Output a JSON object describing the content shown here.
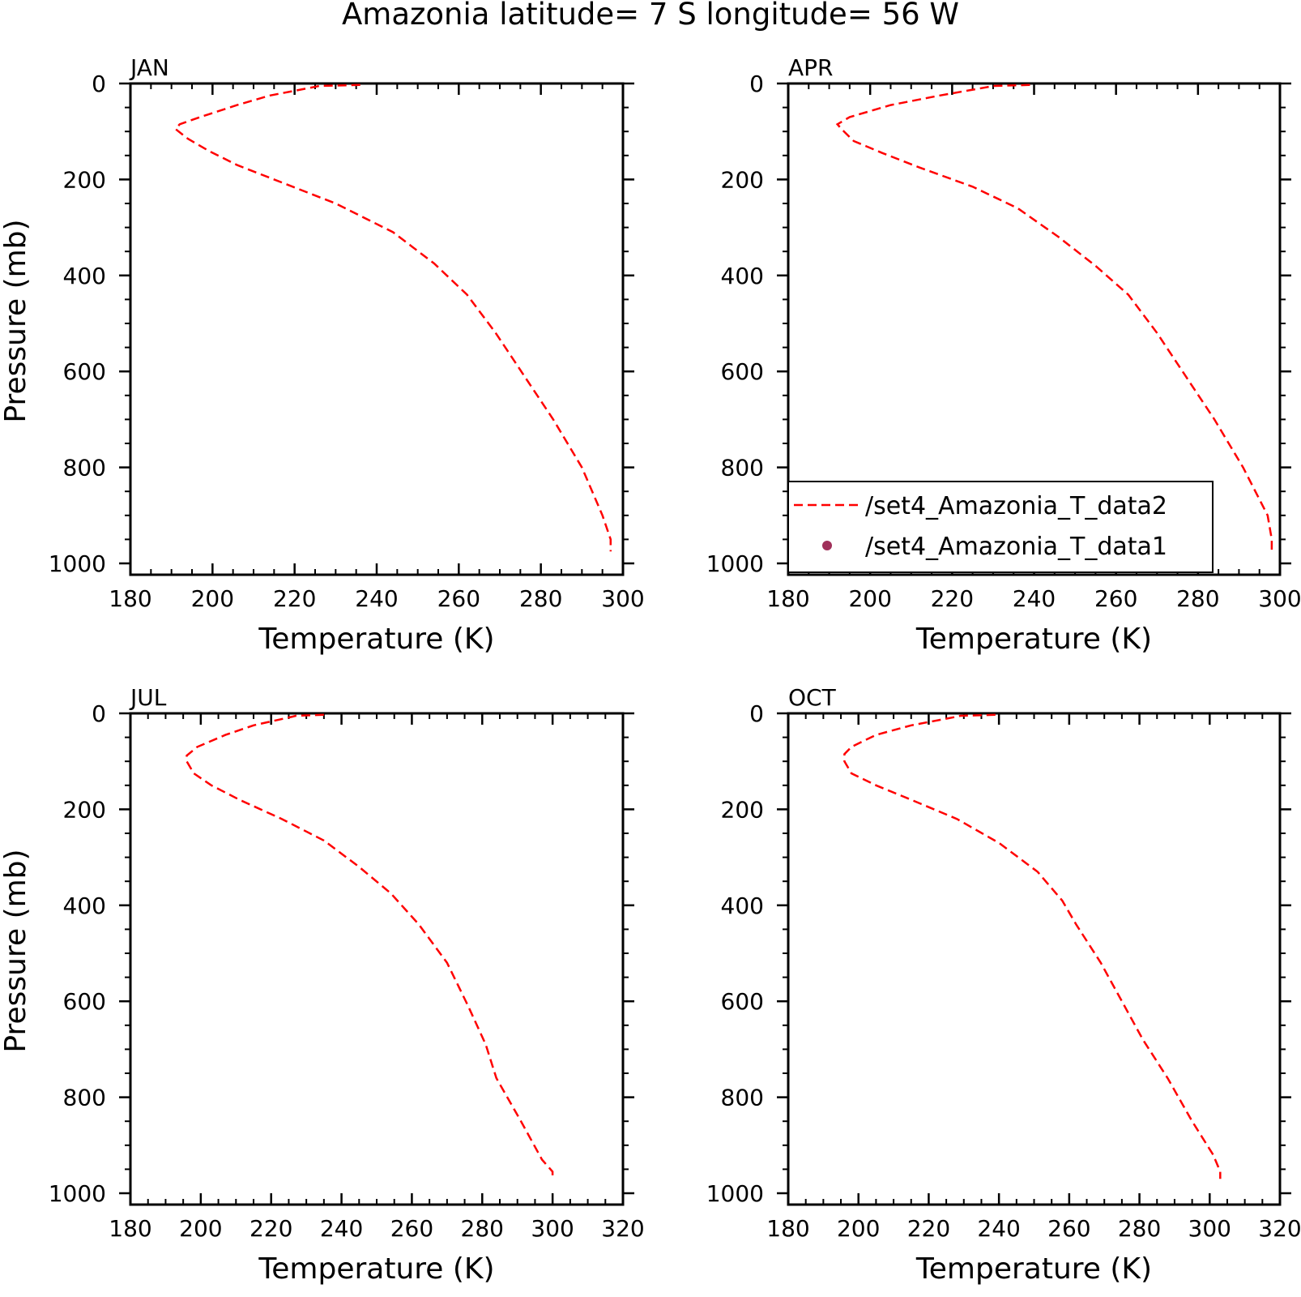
{
  "title": "Amazonia  latitude= 7 S longitude= 56 W",
  "legend": {
    "entries": [
      {
        "label": "/set4_Amazonia_T_data2",
        "style": "dashed-line",
        "color": "#ff0000"
      },
      {
        "label": "/set4_Amazonia_T_data1",
        "style": "marker",
        "color": "#a0305a"
      }
    ]
  },
  "chart_data": [
    {
      "type": "line",
      "panel": "JAN",
      "title": "JAN",
      "xlabel": "Temperature (K)",
      "ylabel": "Pressure (mb)",
      "xlim": [
        180,
        300
      ],
      "ylim": [
        1000,
        0
      ],
      "xticks": [
        "180",
        "200",
        "220",
        "240",
        "260",
        "280",
        "300"
      ],
      "yticks": [
        "0",
        "200",
        "400",
        "600",
        "800",
        "1000"
      ],
      "series": [
        {
          "name": "/set4_Amazonia_T_data2",
          "color": "#ff0000",
          "style": "dashed",
          "x": [
            236,
            226,
            225,
            214,
            206,
            197,
            192,
            191,
            194,
            199,
            206,
            218,
            230,
            244,
            254,
            262,
            269,
            276,
            283,
            290,
            295,
            297,
            297
          ],
          "y": [
            3,
            5,
            7,
            25,
            45,
            70,
            85,
            95,
            115,
            140,
            170,
            210,
            250,
            310,
            375,
            440,
            520,
            610,
            700,
            800,
            900,
            950,
            975
          ]
        },
        {
          "name": "/set4_Amazonia_T_data1",
          "color": "#a0305a",
          "style": "marker",
          "x": [],
          "y": []
        }
      ]
    },
    {
      "type": "line",
      "panel": "APR",
      "title": "APR",
      "xlabel": "Temperature (K)",
      "ylabel": "",
      "xlim": [
        180,
        300
      ],
      "ylim": [
        1000,
        0
      ],
      "xticks": [
        "180",
        "200",
        "220",
        "240",
        "260",
        "280",
        "300"
      ],
      "yticks": [
        "0",
        "200",
        "400",
        "600",
        "800",
        "1000"
      ],
      "series": [
        {
          "name": "/set4_Amazonia_T_data2",
          "color": "#ff0000",
          "style": "dashed",
          "x": [
            239,
            230,
            229,
            217,
            205,
            195,
            192,
            193,
            196,
            203,
            212,
            225,
            236,
            246,
            255,
            263,
            270,
            277,
            284,
            291,
            297,
            298,
            298
          ],
          "y": [
            3,
            5,
            7,
            25,
            45,
            70,
            85,
            95,
            120,
            145,
            175,
            215,
            260,
            320,
            380,
            440,
            520,
            610,
            700,
            800,
            900,
            950,
            975
          ]
        },
        {
          "name": "/set4_Amazonia_T_data1",
          "color": "#a0305a",
          "style": "marker",
          "x": [],
          "y": []
        }
      ]
    },
    {
      "type": "line",
      "panel": "JUL",
      "title": "JUL",
      "xlabel": "Temperature (K)",
      "ylabel": "Pressure (mb)",
      "xlim": [
        180,
        320
      ],
      "ylim": [
        1000,
        0
      ],
      "xticks": [
        "180",
        "200",
        "220",
        "240",
        "260",
        "280",
        "300",
        "320"
      ],
      "yticks": [
        "0",
        "200",
        "400",
        "600",
        "800",
        "1000"
      ],
      "series": [
        {
          "name": "/set4_Amazonia_T_data2",
          "color": "#ff0000",
          "style": "dashed",
          "x": [
            235,
            227,
            226,
            215,
            207,
            199,
            196,
            196,
            198,
            203,
            211,
            223,
            235,
            245,
            254,
            262,
            270,
            276,
            281,
            284,
            291,
            297,
            300,
            300
          ],
          "y": [
            3,
            5,
            7,
            25,
            45,
            70,
            88,
            100,
            125,
            150,
            180,
            220,
            265,
            320,
            375,
            440,
            520,
            610,
            690,
            760,
            850,
            930,
            955,
            970
          ]
        },
        {
          "name": "/set4_Amazonia_T_data1",
          "color": "#a0305a",
          "style": "marker",
          "x": [],
          "y": []
        }
      ]
    },
    {
      "type": "line",
      "panel": "OCT",
      "title": "OCT",
      "xlabel": "Temperature (K)",
      "ylabel": "",
      "xlim": [
        180,
        320
      ],
      "ylim": [
        1000,
        0
      ],
      "xticks": [
        "180",
        "200",
        "220",
        "240",
        "260",
        "280",
        "300",
        "320"
      ],
      "yticks": [
        "0",
        "200",
        "400",
        "600",
        "800",
        "1000"
      ],
      "series": [
        {
          "name": "/set4_Amazonia_T_data2",
          "color": "#ff0000",
          "style": "dashed",
          "x": [
            239,
            229,
            228,
            215,
            205,
            198,
            196,
            196,
            198,
            205,
            215,
            228,
            240,
            251,
            258,
            262,
            269,
            275,
            281,
            288,
            295,
            301,
            303,
            303
          ],
          "y": [
            3,
            5,
            7,
            25,
            45,
            70,
            85,
            100,
            125,
            150,
            180,
            220,
            270,
            330,
            390,
            440,
            520,
            600,
            680,
            760,
            850,
            920,
            955,
            970
          ]
        },
        {
          "name": "/set4_Amazonia_T_data1",
          "color": "#a0305a",
          "style": "marker",
          "x": [],
          "y": []
        }
      ]
    }
  ]
}
